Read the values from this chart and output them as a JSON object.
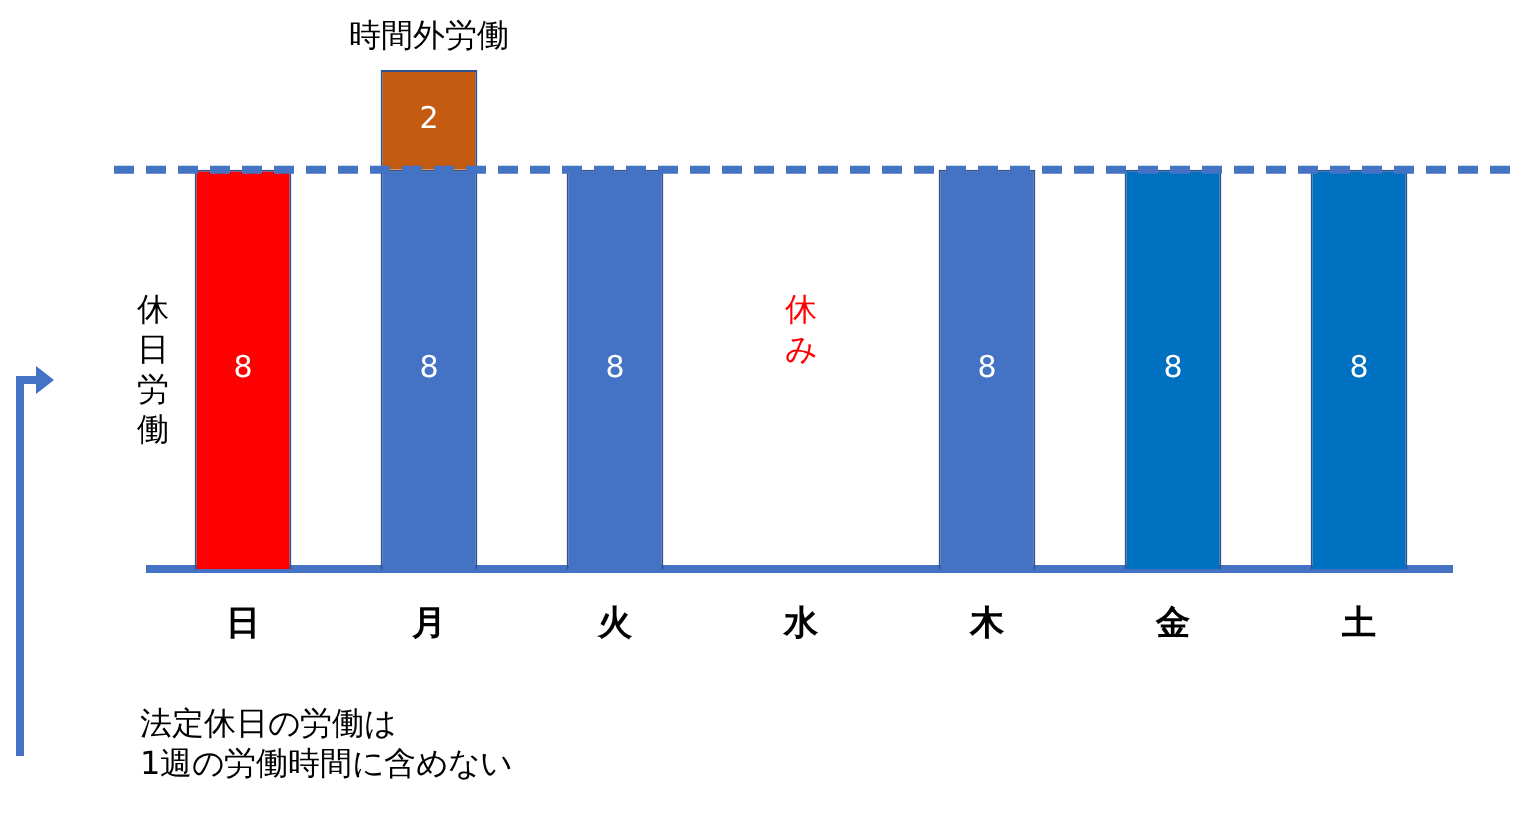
{
  "chart_data": {
    "type": "bar",
    "stacked": true,
    "categories": [
      "日",
      "月",
      "火",
      "水",
      "木",
      "金",
      "土"
    ],
    "series": [
      {
        "colors": [
          "#ff0000",
          "#4472c4",
          "#4472c4",
          null,
          "#4472c4",
          "#0070c0",
          "#0070c0"
        ],
        "values": [
          8,
          8,
          8,
          null,
          8,
          8,
          8
        ]
      },
      {
        "name": "時間外労働",
        "color": "#c55a11",
        "values": [
          null,
          2,
          null,
          null,
          null,
          null,
          null
        ]
      }
    ],
    "data_labels": true,
    "legend": false,
    "grid": false,
    "tick_labels": "x",
    "ref_lines": [
      {
        "axis": "y",
        "value": 8,
        "color": "#4472c4",
        "line_style": "dashed"
      }
    ],
    "annotations": [
      "休み",
      "休日労働",
      "法定休日の労働は\n1週の労働時間に含めない"
    ]
  }
}
